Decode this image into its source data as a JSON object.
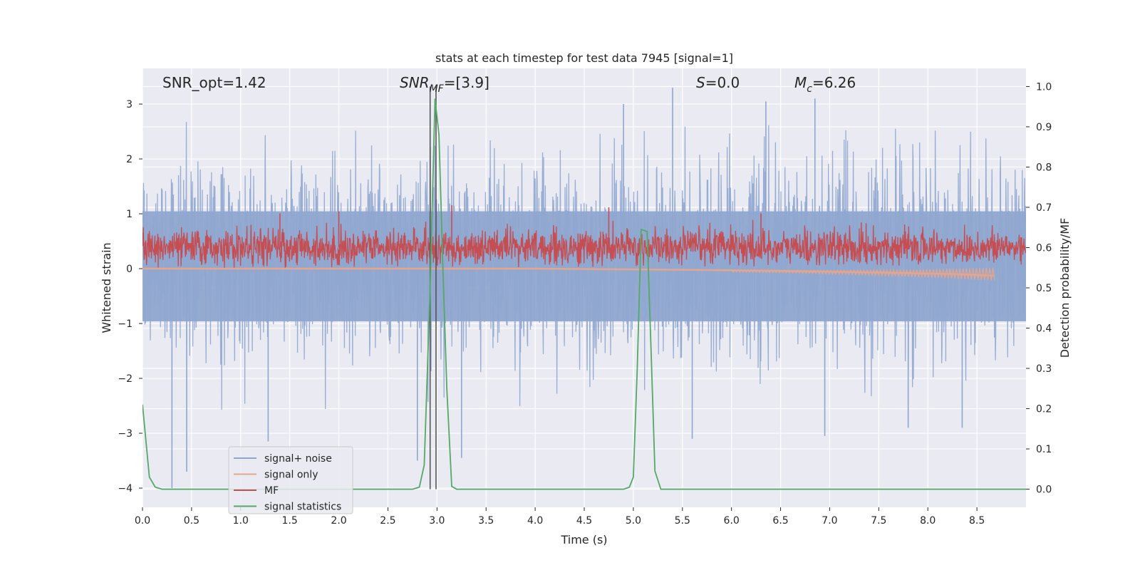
{
  "chart_data": {
    "type": "line",
    "title": "stats at each timestep for test data 7945 [signal=1]",
    "xlabel": "Time (s)",
    "ylabel": "Whitened strain",
    "y2label": "Detection probability/MF",
    "xlim": [
      0.0,
      9.0
    ],
    "ylim": [
      -4.35,
      3.65
    ],
    "y2lim": [
      -0.045,
      1.045
    ],
    "xticks": [
      0.0,
      0.5,
      1.0,
      1.5,
      2.0,
      2.5,
      3.0,
      3.5,
      4.0,
      4.5,
      5.0,
      5.5,
      6.0,
      6.5,
      7.0,
      7.5,
      8.0,
      8.5
    ],
    "xtick_labels": [
      "0.0",
      "0.5",
      "1.0",
      "1.5",
      "2.0",
      "2.5",
      "3.0",
      "3.5",
      "4.0",
      "4.5",
      "5.0",
      "5.5",
      "6.0",
      "6.5",
      "7.0",
      "7.5",
      "8.0",
      "8.5"
    ],
    "yticks": [
      3,
      2,
      1,
      0,
      -1,
      -2,
      -3,
      -4
    ],
    "ytick_labels": [
      "3",
      "2",
      "1",
      "0",
      "−1",
      "−2",
      "−3",
      "−4"
    ],
    "y2ticks": [
      1.0,
      0.9,
      0.8,
      0.7,
      0.6,
      0.5,
      0.4,
      0.3,
      0.2,
      0.1,
      0.0
    ],
    "y2tick_labels": [
      "1.0",
      "0.9",
      "0.8",
      "0.7",
      "0.6",
      "0.5",
      "0.4",
      "0.3",
      "0.2",
      "0.1",
      "0.0"
    ],
    "annotations": {
      "snr_opt": "SNR_opt=1.42",
      "snr_mf_main": "SNR",
      "snr_mf_sub": "MF",
      "snr_mf_value": "=[3.9]",
      "s_main": "S",
      "s_value": "=0.0",
      "mc_main": "M",
      "mc_sub": "c",
      "mc_value": "=6.26"
    },
    "vertical_lines_x": [
      2.93,
      2.99
    ],
    "series": [
      {
        "name": "signal+ noise",
        "axis": "left",
        "color": "#8fa6cf",
        "description": "whitened noisy strain, roughly N(0,1), range about -4 to 3.3",
        "envelope_typical": [
          -1.6,
          1.9
        ],
        "peaks": [
          [
            0.3,
            -4.0
          ],
          [
            0.45,
            -3.7
          ],
          [
            1.28,
            -3.15
          ],
          [
            3.25,
            -3.45
          ],
          [
            5.6,
            -3.1
          ],
          [
            6.85,
            3.1
          ],
          [
            6.95,
            -3.05
          ],
          [
            2.8,
            -3.5
          ],
          [
            7.8,
            -2.9
          ],
          [
            8.35,
            -2.9
          ],
          [
            5.4,
            3.3
          ],
          [
            6.35,
            3.05
          ],
          [
            4.9,
            3.0
          ]
        ]
      },
      {
        "name": "signal only",
        "axis": "left",
        "color": "#e5a58c",
        "description": "injected chirp, near zero, growing toward ~8.7 s",
        "points": [
          [
            0.0,
            0.0
          ],
          [
            2.0,
            0.0
          ],
          [
            4.0,
            0.0
          ],
          [
            5.5,
            -0.02
          ],
          [
            6.5,
            -0.04
          ],
          [
            7.5,
            -0.07
          ],
          [
            8.3,
            -0.1
          ],
          [
            8.68,
            -0.13
          ]
        ]
      },
      {
        "name": "MF",
        "axis": "right",
        "color": "#c44e52",
        "description": "matched filter output fluctuating around ~0.6",
        "center": 0.6,
        "band": [
          0.55,
          0.68
        ],
        "spikes": [
          [
            3.15,
            0.705
          ],
          [
            4.75,
            0.7
          ],
          [
            2.0,
            0.69
          ],
          [
            1.4,
            0.685
          ],
          [
            6.3,
            0.685
          ]
        ]
      },
      {
        "name": "signal statistics",
        "axis": "right",
        "color": "#55a868",
        "points": [
          [
            0.0,
            0.21
          ],
          [
            0.07,
            0.03
          ],
          [
            0.13,
            0.005
          ],
          [
            0.2,
            0.0
          ],
          [
            0.5,
            0.0
          ],
          [
            1.0,
            0.0
          ],
          [
            2.0,
            0.0
          ],
          [
            2.75,
            0.0
          ],
          [
            2.82,
            0.005
          ],
          [
            2.87,
            0.06
          ],
          [
            2.93,
            0.5
          ],
          [
            2.98,
            0.97
          ],
          [
            3.02,
            0.88
          ],
          [
            3.06,
            0.55
          ],
          [
            3.1,
            0.25
          ],
          [
            3.15,
            0.007
          ],
          [
            3.2,
            0.0
          ],
          [
            4.0,
            0.0
          ],
          [
            4.9,
            0.0
          ],
          [
            4.96,
            0.005
          ],
          [
            5.0,
            0.03
          ],
          [
            5.04,
            0.3
          ],
          [
            5.08,
            0.645
          ],
          [
            5.14,
            0.64
          ],
          [
            5.18,
            0.35
          ],
          [
            5.22,
            0.045
          ],
          [
            5.28,
            0.0
          ],
          [
            6.0,
            0.0
          ],
          [
            7.0,
            0.0
          ],
          [
            8.0,
            0.0
          ],
          [
            9.0,
            0.0
          ]
        ]
      }
    ],
    "legend": {
      "position": "lower-left",
      "entries": [
        {
          "label": "signal+ noise",
          "color": "#8fa6cf"
        },
        {
          "label": "signal only",
          "color": "#e5a58c"
        },
        {
          "label": "MF",
          "color": "#c44e52"
        },
        {
          "label": "signal statistics",
          "color": "#55a868"
        }
      ]
    }
  }
}
